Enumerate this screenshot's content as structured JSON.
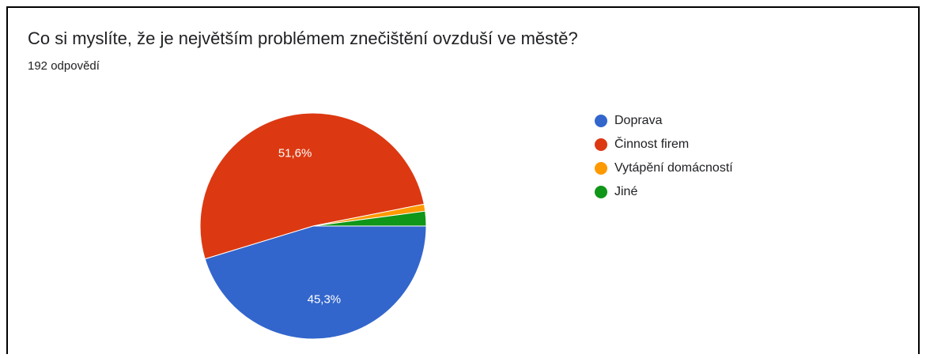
{
  "chart_data": {
    "type": "pie",
    "title": "Co si myslíte, že je největším problémem znečištění ovzduší ve městě?",
    "subtitle": "192 odpovědí",
    "categories": [
      "Doprava",
      "Činnost firem",
      "Vytápění domácností",
      "Jiné"
    ],
    "values": [
      45.3,
      51.6,
      1.0,
      2.1
    ],
    "value_labels": [
      "45,3%",
      "51,6%",
      null,
      null
    ],
    "colors": [
      "#3366cc",
      "#dc3912",
      "#ff9900",
      "#109618"
    ],
    "legend": "right"
  }
}
